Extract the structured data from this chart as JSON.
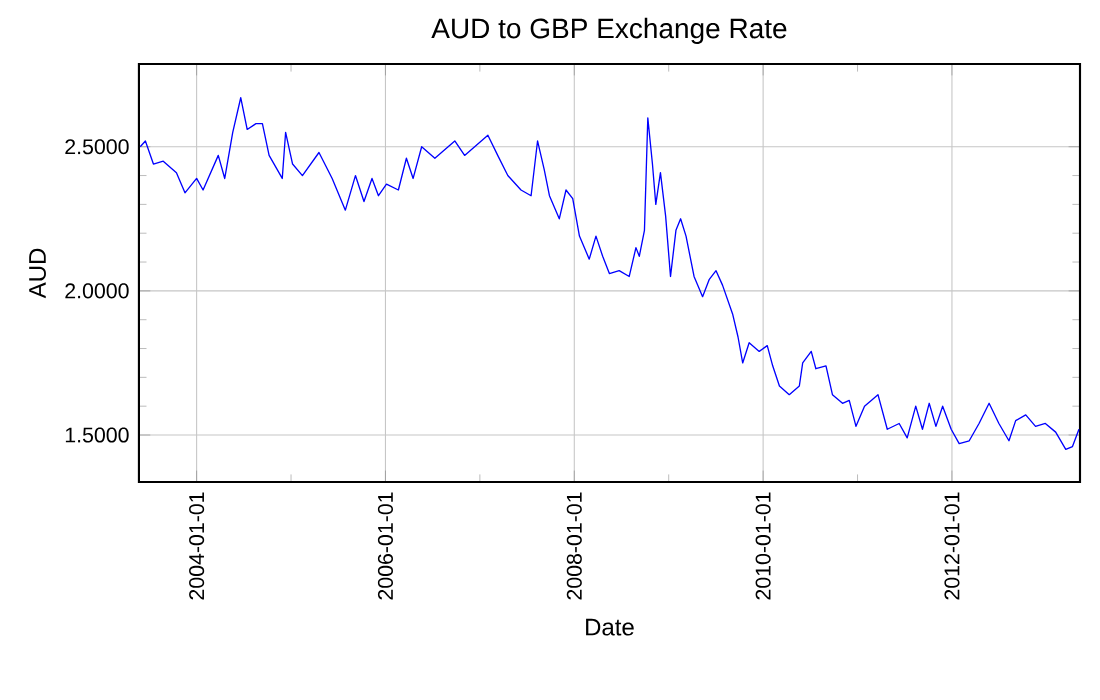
{
  "chart_data": {
    "type": "line",
    "title": "AUD to GBP Exchange Rate",
    "xlabel": "Date",
    "ylabel": "AUD",
    "x": [
      "2003-05-28",
      "2003-06-17",
      "2003-07-18",
      "2003-08-25",
      "2003-10-15",
      "2003-11-17",
      "2004-01-01",
      "2004-01-26",
      "2004-03-25",
      "2004-04-19",
      "2004-05-20",
      "2004-06-20",
      "2004-07-15",
      "2004-08-18",
      "2004-09-12",
      "2004-10-08",
      "2004-11-28",
      "2004-12-11",
      "2005-01-07",
      "2005-02-14",
      "2005-04-19",
      "2005-06-09",
      "2005-07-30",
      "2005-09-07",
      "2005-10-10",
      "2005-11-10",
      "2005-12-05",
      "2006-01-05",
      "2006-02-20",
      "2006-03-23",
      "2006-04-18",
      "2006-05-21",
      "2006-07-11",
      "2006-09-26",
      "2006-11-03",
      "2007-02-01",
      "2007-03-11",
      "2007-04-19",
      "2007-06-09",
      "2007-07-18",
      "2007-08-12",
      "2007-09-07",
      "2007-09-27",
      "2007-11-04",
      "2007-11-30",
      "2007-12-26",
      "2008-01-21",
      "2008-02-28",
      "2008-03-25",
      "2008-04-20",
      "2008-05-16",
      "2008-06-23",
      "2008-08-01",
      "2008-08-27",
      "2008-09-09",
      "2008-09-29",
      "2008-10-12",
      "2008-10-30",
      "2008-11-12",
      "2008-11-30",
      "2008-12-20",
      "2009-01-08",
      "2009-01-29",
      "2009-02-16",
      "2009-03-09",
      "2009-04-09",
      "2009-05-12",
      "2009-06-07",
      "2009-07-03",
      "2009-07-28",
      "2009-09-05",
      "2009-09-26",
      "2009-10-14",
      "2009-11-08",
      "2009-12-17",
      "2010-01-17",
      "2010-02-07",
      "2010-03-05",
      "2010-04-12",
      "2010-05-21",
      "2010-06-03",
      "2010-07-06",
      "2010-07-24",
      "2010-09-01",
      "2010-09-26",
      "2010-11-04",
      "2010-11-30",
      "2010-12-26",
      "2011-01-28",
      "2011-03-21",
      "2011-04-26",
      "2011-06-11",
      "2011-07-12",
      "2011-08-14",
      "2011-09-09",
      "2011-10-05",
      "2011-10-31",
      "2011-11-26",
      "2011-12-29",
      "2012-01-29",
      "2012-03-08",
      "2012-04-15",
      "2012-05-24",
      "2012-07-01",
      "2012-08-09",
      "2012-09-04",
      "2012-10-13",
      "2012-11-20",
      "2012-12-28",
      "2013-02-06",
      "2013-03-17",
      "2013-04-12",
      "2013-05-07"
    ],
    "series": [
      {
        "color": "#0000ff",
        "values": [
          2.5,
          2.52,
          2.44,
          2.45,
          2.41,
          2.34,
          2.39,
          2.35,
          2.47,
          2.39,
          2.55,
          2.67,
          2.56,
          2.58,
          2.58,
          2.47,
          2.39,
          2.55,
          2.44,
          2.4,
          2.48,
          2.39,
          2.28,
          2.4,
          2.31,
          2.39,
          2.33,
          2.37,
          2.35,
          2.46,
          2.39,
          2.5,
          2.46,
          2.52,
          2.47,
          2.54,
          2.47,
          2.4,
          2.35,
          2.33,
          2.52,
          2.42,
          2.33,
          2.25,
          2.35,
          2.32,
          2.19,
          2.11,
          2.19,
          2.12,
          2.06,
          2.07,
          2.05,
          2.15,
          2.12,
          2.21,
          2.6,
          2.44,
          2.3,
          2.41,
          2.26,
          2.05,
          2.21,
          2.25,
          2.19,
          2.05,
          1.98,
          2.04,
          2.07,
          2.02,
          1.92,
          1.84,
          1.75,
          1.82,
          1.79,
          1.81,
          1.74,
          1.67,
          1.64,
          1.67,
          1.75,
          1.79,
          1.73,
          1.74,
          1.64,
          1.61,
          1.62,
          1.53,
          1.6,
          1.64,
          1.52,
          1.54,
          1.49,
          1.6,
          1.52,
          1.61,
          1.53,
          1.6,
          1.52,
          1.47,
          1.48,
          1.54,
          1.61,
          1.54,
          1.48,
          1.55,
          1.57,
          1.53,
          1.54,
          1.51,
          1.45,
          1.46,
          1.52
        ]
      }
    ],
    "xlim": [
      "2003-05-23",
      "2013-05-11"
    ],
    "xticks": [
      {
        "value": "2004-01-01",
        "label": "2004-01-01"
      },
      {
        "value": "2006-01-01",
        "label": "2006-01-01"
      },
      {
        "value": "2008-01-01",
        "label": "2008-01-01"
      },
      {
        "value": "2010-01-01",
        "label": "2010-01-01"
      },
      {
        "value": "2012-01-01",
        "label": "2012-01-01"
      }
    ],
    "ylim": [
      1.337,
      2.787
    ],
    "yticks": [
      {
        "value": 1.5,
        "label": "1.5000"
      },
      {
        "value": 2.0,
        "label": "2.0000"
      },
      {
        "value": 2.5,
        "label": "2.5000"
      }
    ],
    "grid": true,
    "marker": "none",
    "line_style": "solid"
  }
}
